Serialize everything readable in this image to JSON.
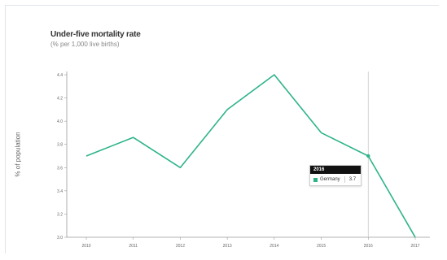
{
  "chart_data": {
    "type": "line",
    "title": "Under-five mortality rate",
    "subtitle": "(% per 1,000 live births)",
    "ylabel": "% of population",
    "categories": [
      "2010",
      "2011",
      "2012",
      "2013",
      "2014",
      "2015",
      "2016",
      "2017"
    ],
    "series": [
      {
        "name": "Germany",
        "values": [
          3.7,
          3.86,
          3.6,
          4.1,
          4.4,
          3.9,
          3.7,
          3.0
        ]
      }
    ],
    "ylim": [
      3.0,
      4.4
    ],
    "yticks": [
      "3.0",
      "3.2",
      "3.4",
      "3.6",
      "3.8",
      "4.0",
      "4.2",
      "4.4"
    ],
    "grid": false,
    "line_color": "#2db38a"
  },
  "tooltip": {
    "year": "2016",
    "series_name": "Germany",
    "value": "3.7"
  }
}
